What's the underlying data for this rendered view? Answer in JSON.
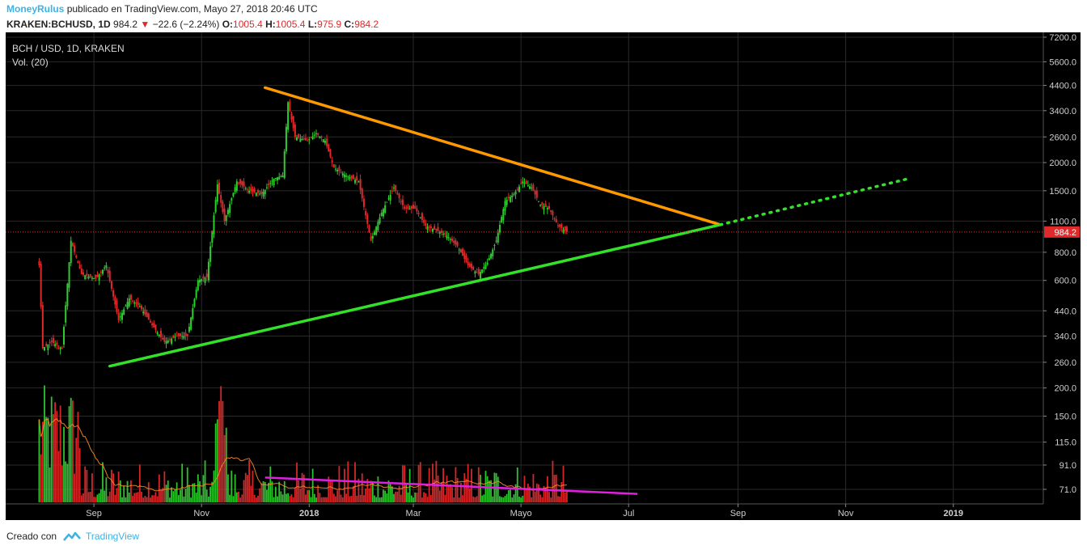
{
  "header": {
    "username": "MoneyRulus",
    "published_text": "publicado en TradingView.com, Mayo 27, 2018 20:46 UTC"
  },
  "ticker": {
    "symbol": "KRAKEN:BCHUSD, 1D",
    "last": "984.2",
    "change": "−22.6 (−2.24%)",
    "open_label": "O:",
    "open": "1005.4",
    "high_label": "H:",
    "high": "1005.4",
    "low_label": "L:",
    "low": "975.9",
    "close_label": "C:",
    "close": "984.2"
  },
  "overlay": {
    "series_title": "BCH / USD, 1D, KRAKEN",
    "volume_title": "Vol. (20)"
  },
  "footer": {
    "created_with": "Creado con",
    "brand": "TradingView"
  },
  "colors": {
    "up": "#2ecc2e",
    "down": "#e0292a",
    "resistance": "#ff9900",
    "support": "#33e02a",
    "volume_trend": "#e020e0",
    "price_marker": "#e0292a"
  },
  "chart_data": {
    "type": "candlestick",
    "scale": "log",
    "price_axis": [
      7200,
      5600,
      4400,
      3400,
      2600,
      2000,
      1500,
      1100,
      800,
      600,
      440,
      340,
      260,
      200,
      150,
      115,
      91,
      71
    ],
    "time_axis": [
      {
        "label": "Sep",
        "date": "2017-09-01"
      },
      {
        "label": "Nov",
        "date": "2017-11-01"
      },
      {
        "label": "2018",
        "date": "2018-01-01"
      },
      {
        "label": "Mar",
        "date": "2018-03-01"
      },
      {
        "label": "Mayo",
        "date": "2018-05-01"
      },
      {
        "label": "Jul",
        "date": "2018-07-01"
      },
      {
        "label": "Sep",
        "date": "2018-09-01"
      },
      {
        "label": "Nov",
        "date": "2018-11-01"
      },
      {
        "label": "2019",
        "date": "2019-01-01"
      }
    ],
    "x_range": [
      "2017-07-13",
      "2019-02-21"
    ],
    "last_price": 984.2,
    "price_path": [
      {
        "date": "2017-08-01",
        "close": 700
      },
      {
        "date": "2017-08-03",
        "close": 300
      },
      {
        "date": "2017-08-08",
        "close": 320
      },
      {
        "date": "2017-08-14",
        "close": 300
      },
      {
        "date": "2017-08-19",
        "close": 900
      },
      {
        "date": "2017-08-25",
        "close": 640
      },
      {
        "date": "2017-09-02",
        "close": 610
      },
      {
        "date": "2017-09-08",
        "close": 700
      },
      {
        "date": "2017-09-15",
        "close": 400
      },
      {
        "date": "2017-09-21",
        "close": 500
      },
      {
        "date": "2017-09-27",
        "close": 460
      },
      {
        "date": "2017-10-04",
        "close": 380
      },
      {
        "date": "2017-10-11",
        "close": 320
      },
      {
        "date": "2017-10-18",
        "close": 340
      },
      {
        "date": "2017-10-24",
        "close": 340
      },
      {
        "date": "2017-10-30",
        "close": 600
      },
      {
        "date": "2017-11-04",
        "close": 620
      },
      {
        "date": "2017-11-10",
        "close": 1600
      },
      {
        "date": "2017-11-14",
        "close": 1100
      },
      {
        "date": "2017-11-21",
        "close": 1650
      },
      {
        "date": "2017-11-28",
        "close": 1500
      },
      {
        "date": "2017-12-05",
        "close": 1450
      },
      {
        "date": "2017-12-12",
        "close": 1700
      },
      {
        "date": "2017-12-17",
        "close": 1750
      },
      {
        "date": "2017-12-20",
        "close": 3700
      },
      {
        "date": "2017-12-24",
        "close": 2600
      },
      {
        "date": "2017-12-31",
        "close": 2500
      },
      {
        "date": "2018-01-05",
        "close": 2700
      },
      {
        "date": "2018-01-10",
        "close": 2500
      },
      {
        "date": "2018-01-15",
        "close": 1900
      },
      {
        "date": "2018-01-22",
        "close": 1750
      },
      {
        "date": "2018-01-29",
        "close": 1650
      },
      {
        "date": "2018-02-05",
        "close": 900
      },
      {
        "date": "2018-02-11",
        "close": 1200
      },
      {
        "date": "2018-02-18",
        "close": 1550
      },
      {
        "date": "2018-02-24",
        "close": 1250
      },
      {
        "date": "2018-03-02",
        "close": 1250
      },
      {
        "date": "2018-03-08",
        "close": 1050
      },
      {
        "date": "2018-03-14",
        "close": 1000
      },
      {
        "date": "2018-03-20",
        "close": 950
      },
      {
        "date": "2018-03-26",
        "close": 850
      },
      {
        "date": "2018-04-01",
        "close": 700
      },
      {
        "date": "2018-04-07",
        "close": 640
      },
      {
        "date": "2018-04-12",
        "close": 720
      },
      {
        "date": "2018-04-17",
        "close": 900
      },
      {
        "date": "2018-04-22",
        "close": 1350
      },
      {
        "date": "2018-04-27",
        "close": 1450
      },
      {
        "date": "2018-05-02",
        "close": 1650
      },
      {
        "date": "2018-05-07",
        "close": 1550
      },
      {
        "date": "2018-05-12",
        "close": 1300
      },
      {
        "date": "2018-05-17",
        "close": 1250
      },
      {
        "date": "2018-05-22",
        "close": 1050
      },
      {
        "date": "2018-05-27",
        "close": 984
      }
    ],
    "annotations": {
      "resistance_line": [
        {
          "date": "2017-12-07",
          "price": 4300
        },
        {
          "date": "2018-08-22",
          "price": 1060
        }
      ],
      "support_line": [
        {
          "date": "2017-09-10",
          "price": 250
        },
        {
          "date": "2018-08-22",
          "price": 1060
        }
      ],
      "support_projection": [
        {
          "date": "2018-08-22",
          "price": 1060
        },
        {
          "date": "2018-12-07",
          "price": 1700
        }
      ],
      "volume_trendline": [
        {
          "date": "2017-12-07",
          "rel": 0.17
        },
        {
          "date": "2018-07-06",
          "rel": 0.03
        }
      ]
    }
  }
}
